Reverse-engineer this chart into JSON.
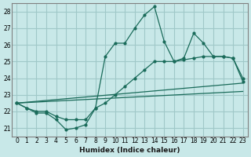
{
  "xlabel": "Humidex (Indice chaleur)",
  "ylabel": "",
  "xlim": [
    -0.5,
    23.5
  ],
  "ylim": [
    20.5,
    28.5
  ],
  "yticks": [
    21,
    22,
    23,
    24,
    25,
    26,
    27,
    28
  ],
  "xticks": [
    0,
    1,
    2,
    3,
    4,
    5,
    6,
    7,
    8,
    9,
    10,
    11,
    12,
    13,
    14,
    15,
    16,
    17,
    18,
    19,
    20,
    21,
    22,
    23
  ],
  "bg_color": "#c8e8e8",
  "grid_color": "#a0c8c8",
  "line_color": "#1a6b5a",
  "lines": [
    {
      "x": [
        0,
        1,
        2,
        3,
        4,
        5,
        6,
        7,
        8,
        9,
        10,
        11,
        12,
        13,
        14,
        15,
        16,
        17,
        18,
        19,
        20,
        21,
        22,
        23
      ],
      "y": [
        22.5,
        22.2,
        21.9,
        21.9,
        21.5,
        20.9,
        21.0,
        21.2,
        22.2,
        25.3,
        26.1,
        26.1,
        27.0,
        27.8,
        28.3,
        26.2,
        25.0,
        25.2,
        26.7,
        26.1,
        25.3,
        25.3,
        25.2,
        24.0
      ]
    },
    {
      "x": [
        0,
        1,
        2,
        3,
        4,
        5,
        6,
        7,
        8,
        9,
        10,
        11,
        12,
        13,
        14,
        15,
        16,
        17,
        18,
        19,
        20,
        21,
        22,
        23
      ],
      "y": [
        22.5,
        22.2,
        22.0,
        22.0,
        21.7,
        21.5,
        21.5,
        21.5,
        22.2,
        22.5,
        23.0,
        23.5,
        24.0,
        24.5,
        25.0,
        25.0,
        25.0,
        25.1,
        25.2,
        25.3,
        25.3,
        25.3,
        25.2,
        23.8
      ]
    },
    {
      "x": [
        0,
        23
      ],
      "y": [
        22.5,
        23.7
      ]
    },
    {
      "x": [
        0,
        23
      ],
      "y": [
        22.5,
        23.2
      ]
    }
  ]
}
